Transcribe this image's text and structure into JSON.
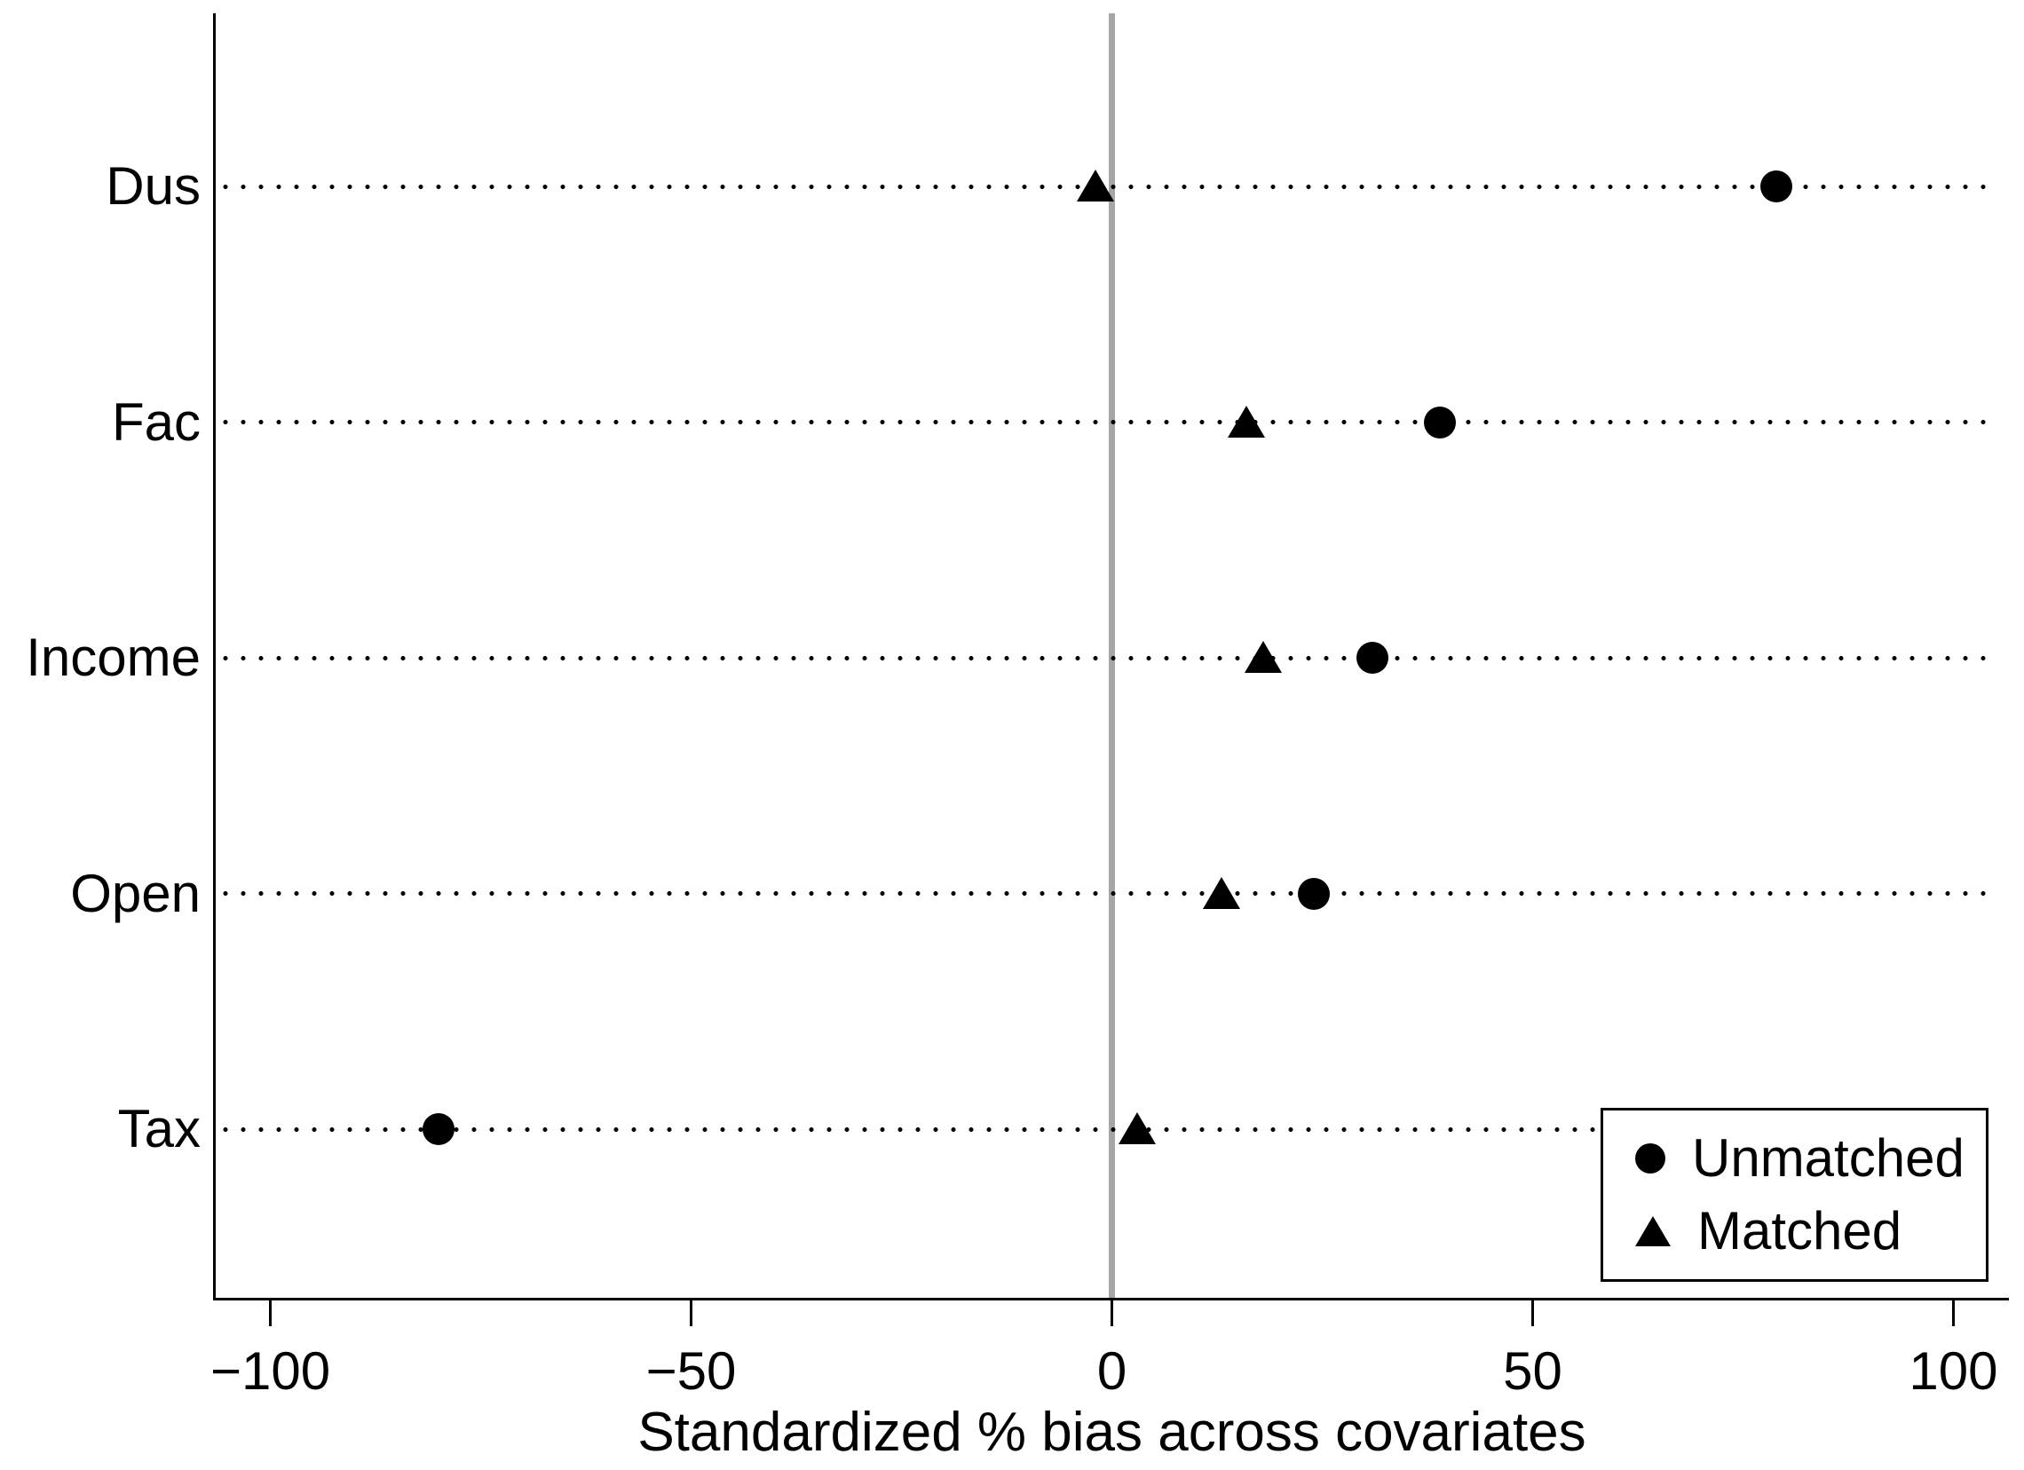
{
  "chart_data": {
    "type": "scatter",
    "title": "",
    "xlabel": "Standardized % bias across covariates",
    "ylabel": "",
    "categories": [
      "Dus",
      "Fac",
      "Income",
      "Open",
      "Tax"
    ],
    "series": [
      {
        "name": "Unmatched",
        "marker": "circle",
        "values": [
          79,
          39,
          31,
          24,
          -80
        ]
      },
      {
        "name": "Matched",
        "marker": "triangle",
        "values": [
          -2,
          16,
          18,
          13,
          3
        ]
      }
    ],
    "x_ticks": [
      {
        "value": -100,
        "label": "−100"
      },
      {
        "value": -50,
        "label": "−50"
      },
      {
        "value": 0,
        "label": "0"
      },
      {
        "value": 50,
        "label": "50"
      },
      {
        "value": 100,
        "label": "100"
      }
    ],
    "xlim": [
      -106.6,
      106.6
    ],
    "grid": "dotted-horizontal-leader-lines",
    "zero_reference_line": {
      "x": 0,
      "color": "#a6a6a6"
    },
    "legend": {
      "position": "bottom-right",
      "items": [
        {
          "label": "Unmatched",
          "marker": "circle"
        },
        {
          "label": "Matched",
          "marker": "triangle"
        }
      ]
    },
    "colors": {
      "marker": "#000000",
      "axis": "#000000",
      "dots": "#000000",
      "background": "#ffffff"
    }
  }
}
